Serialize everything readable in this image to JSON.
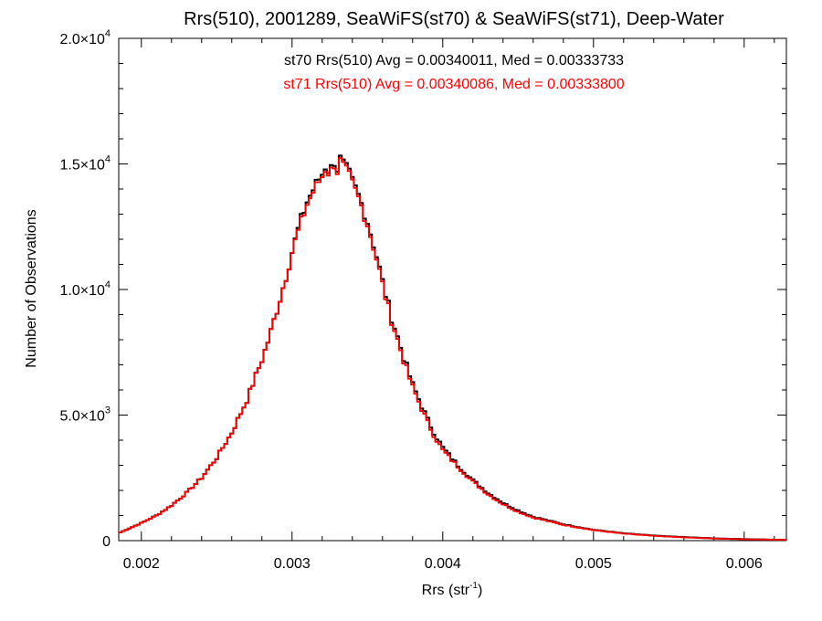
{
  "chart_data": {
    "type": "line",
    "title": "Rrs(510), 2001289, SeaWiFS(st70) & SeaWiFS(st71), Deep-Water",
    "xlabel": "Rrs (str",
    "xlabel_sup": "-1",
    "xlabel_tail": ")",
    "ylabel": "Number of Observations",
    "xlim": [
      0.00185,
      0.00628
    ],
    "ylim": [
      0,
      20000
    ],
    "x_ticks": [
      {
        "value": 0.002,
        "label": "0.002"
      },
      {
        "value": 0.003,
        "label": "0.003"
      },
      {
        "value": 0.004,
        "label": "0.004"
      },
      {
        "value": 0.005,
        "label": "0.005"
      },
      {
        "value": 0.006,
        "label": "0.006"
      }
    ],
    "y_ticks": [
      {
        "value": 0,
        "mant": "0",
        "exp": ""
      },
      {
        "value": 5000,
        "mant": "5.0×10",
        "exp": "3"
      },
      {
        "value": 10000,
        "mant": "1.0×10",
        "exp": "4"
      },
      {
        "value": 15000,
        "mant": "1.5×10",
        "exp": "4"
      },
      {
        "value": 20000,
        "mant": "2.0×10",
        "exp": "4"
      }
    ],
    "annotations": [
      {
        "text": "st70 Rrs(510) Avg = 0.00340011, Med = 0.00333733",
        "color": "#000000"
      },
      {
        "text": "st71 Rrs(510) Avg = 0.00340086, Med = 0.00333800",
        "color": "#ff0000"
      }
    ],
    "series": [
      {
        "color": "#000000",
        "style": "step",
        "x": [
          0.00185,
          0.002,
          0.0021,
          0.0022,
          0.0023,
          0.0024,
          0.0025,
          0.0026,
          0.0027,
          0.00275,
          0.0028,
          0.00285,
          0.0029,
          0.00295,
          0.003,
          0.00305,
          0.0031,
          0.00315,
          0.0032,
          0.00322,
          0.00325,
          0.00328,
          0.0033,
          0.00332,
          0.00335,
          0.00338,
          0.0034,
          0.00345,
          0.0035,
          0.00355,
          0.0036,
          0.00365,
          0.0037,
          0.00375,
          0.0038,
          0.00385,
          0.0039,
          0.00395,
          0.004,
          0.0041,
          0.0042,
          0.0043,
          0.0044,
          0.0045,
          0.0046,
          0.0048,
          0.005,
          0.0052,
          0.0054,
          0.0056,
          0.0058,
          0.006,
          0.00628
        ],
        "y": [
          300,
          700,
          1000,
          1400,
          1900,
          2500,
          3300,
          4300,
          5600,
          6400,
          7200,
          8100,
          9200,
          10300,
          11500,
          12600,
          13500,
          14100,
          14600,
          14900,
          14700,
          15100,
          14800,
          15200,
          14900,
          14600,
          14300,
          13600,
          12700,
          11600,
          10300,
          9100,
          8100,
          7100,
          6200,
          5500,
          4800,
          4200,
          3700,
          3000,
          2400,
          1900,
          1500,
          1200,
          950,
          650,
          430,
          290,
          200,
          140,
          90,
          60,
          30
        ]
      },
      {
        "color": "#ff0000",
        "style": "step",
        "x": [
          0.00185,
          0.002,
          0.0021,
          0.0022,
          0.0023,
          0.0024,
          0.0025,
          0.0026,
          0.0027,
          0.00275,
          0.0028,
          0.00285,
          0.0029,
          0.00295,
          0.003,
          0.00305,
          0.0031,
          0.00315,
          0.0032,
          0.00322,
          0.00325,
          0.00328,
          0.0033,
          0.00332,
          0.00335,
          0.00338,
          0.0034,
          0.00345,
          0.0035,
          0.00355,
          0.0036,
          0.00365,
          0.0037,
          0.00375,
          0.0038,
          0.00385,
          0.0039,
          0.00395,
          0.004,
          0.0041,
          0.0042,
          0.0043,
          0.0044,
          0.0045,
          0.0046,
          0.0048,
          0.005,
          0.0052,
          0.0054,
          0.0056,
          0.0058,
          0.006,
          0.00628
        ],
        "y": [
          300,
          700,
          1000,
          1400,
          1900,
          2500,
          3300,
          4300,
          5600,
          6400,
          7200,
          8100,
          9200,
          10300,
          11500,
          12500,
          13400,
          14000,
          14500,
          14800,
          14600,
          15000,
          14700,
          15100,
          14800,
          14500,
          14200,
          13500,
          12600,
          11500,
          10200,
          9000,
          8000,
          7000,
          6100,
          5400,
          4700,
          4100,
          3600,
          2950,
          2350,
          1850,
          1450,
          1150,
          920,
          630,
          420,
          280,
          190,
          130,
          85,
          55,
          30
        ]
      }
    ]
  }
}
